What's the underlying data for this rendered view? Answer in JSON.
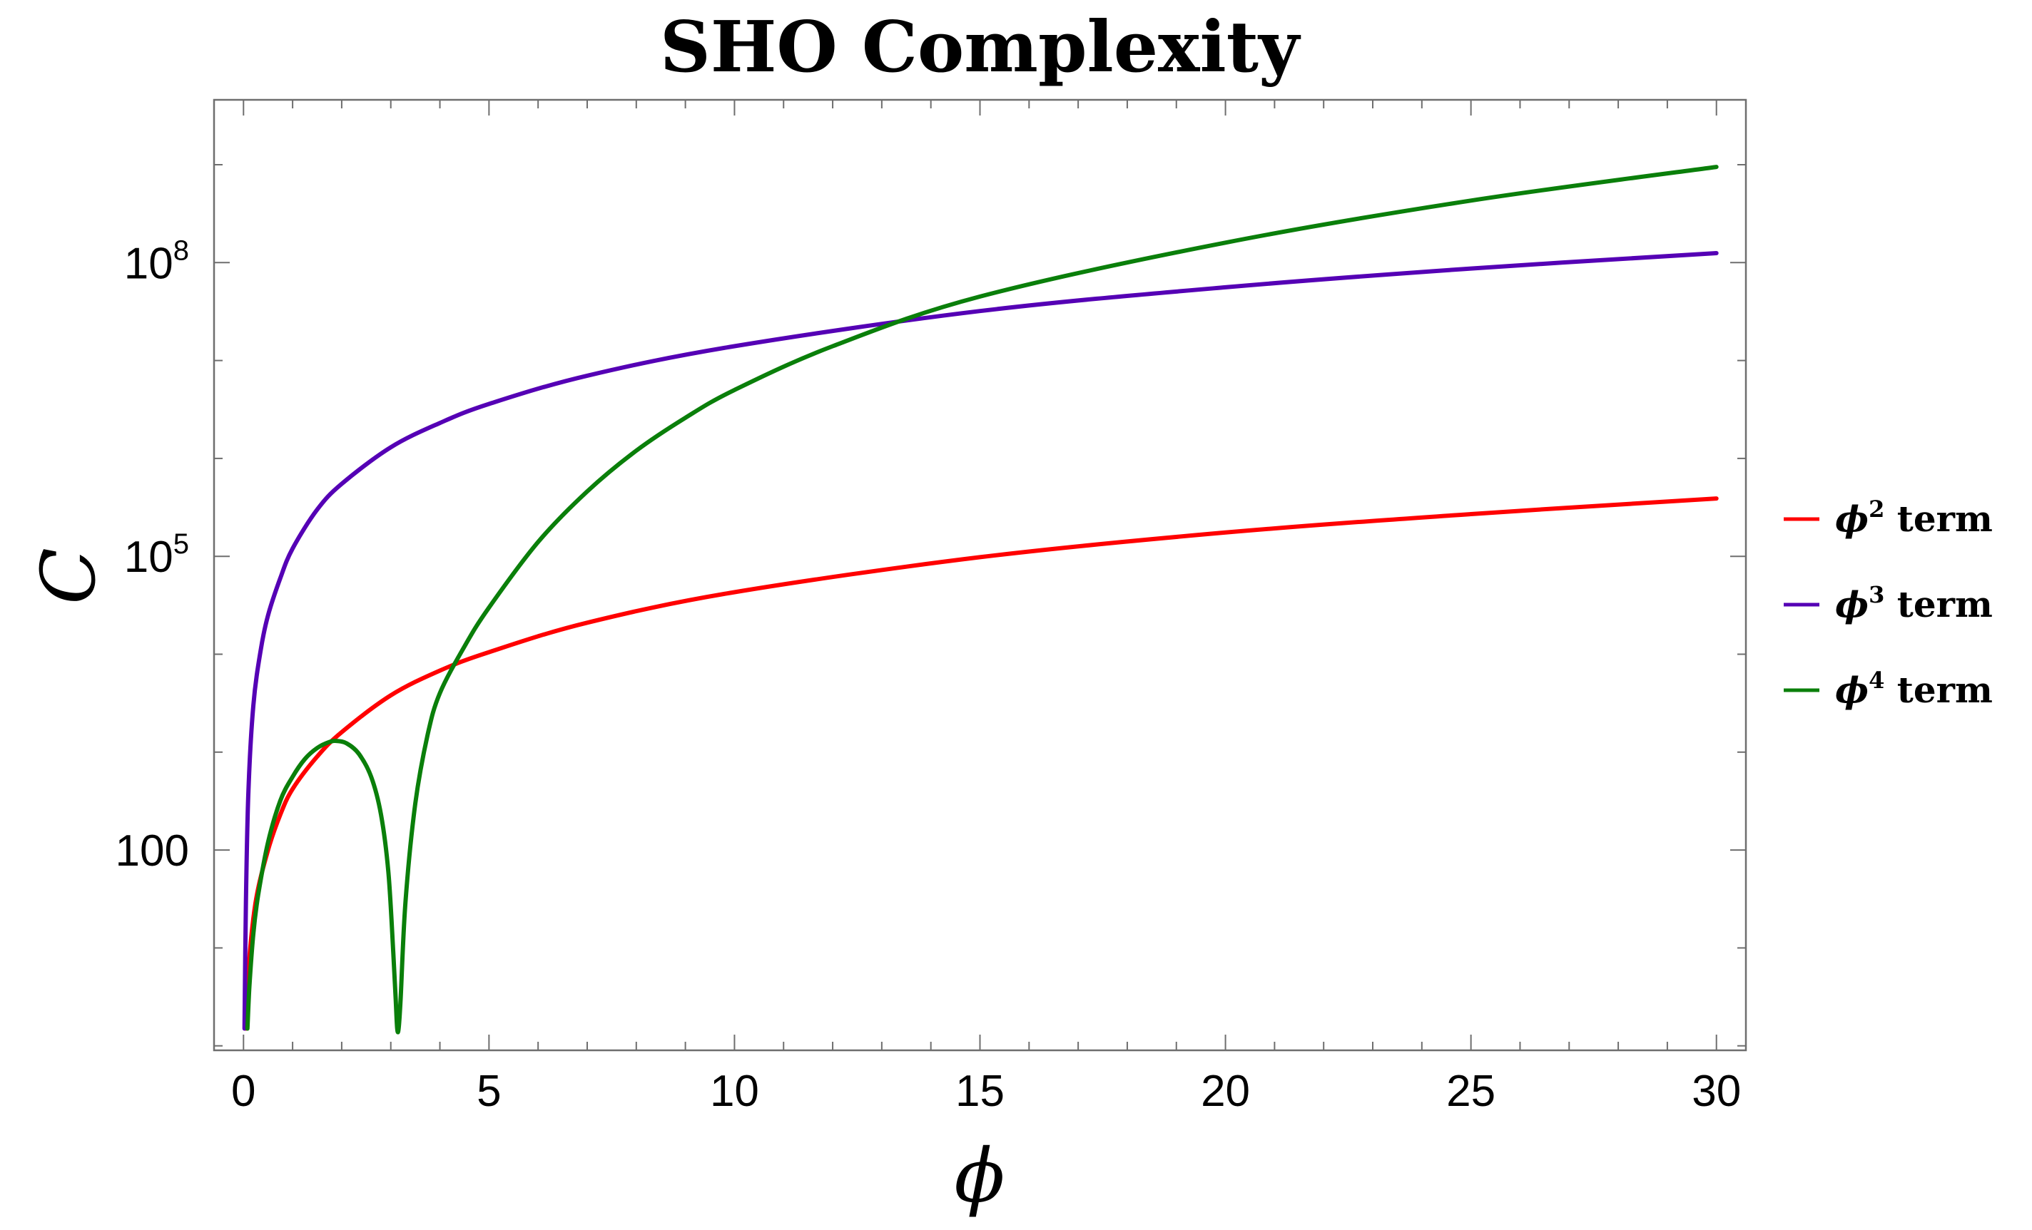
{
  "chart_data": {
    "type": "line",
    "title": "SHO Complexity",
    "xlabel": "ϕ",
    "ylabel": "C",
    "y_scale": "log",
    "xlim": [
      -0.6,
      30.6
    ],
    "ylim": [
      0.9,
      4600000000
    ],
    "xticks": [
      0,
      5,
      10,
      15,
      20,
      25,
      30
    ],
    "xtick_labels": [
      "0",
      "5",
      "10",
      "15",
      "20",
      "25",
      "30"
    ],
    "yticks": [
      100,
      100000,
      100000000
    ],
    "ytick_labels": [
      {
        "mantissa": "100",
        "exponent": ""
      },
      {
        "mantissa": "10",
        "exponent": "5"
      },
      {
        "mantissa": "10",
        "exponent": "8"
      }
    ],
    "grid": false,
    "legend_position": "right",
    "series": [
      {
        "name": "ϕ² term",
        "legend_base": "ϕ",
        "legend_power": "2",
        "legend_suffix": " term",
        "color": "#ff0000",
        "x": [
          0.05,
          0.1,
          0.25,
          0.5,
          0.75,
          1,
          1.5,
          2,
          3,
          4,
          5,
          7,
          10,
          15,
          20,
          25,
          30
        ],
        "y": [
          1.5,
          6,
          30,
          100,
          230,
          420,
          900,
          1600,
          3800,
          6800,
          10500,
          21000,
          43000,
          98000,
          175000,
          270000,
          390000
        ]
      },
      {
        "name": "ϕ³ term",
        "legend_base": "ϕ",
        "legend_power": "3",
        "legend_suffix": " term",
        "color": "#5500b5",
        "x": [
          0.02,
          0.05,
          0.1,
          0.2,
          0.35,
          0.5,
          0.75,
          1,
          1.5,
          2,
          3,
          4,
          5,
          7,
          10,
          15,
          20,
          25,
          30
        ],
        "y": [
          1.5,
          30,
          400,
          3000,
          11000,
          25000,
          60000,
          120000,
          300000,
          550000,
          1300000,
          2300000,
          3600000,
          7000000,
          14000000,
          32000000,
          56000000,
          87000000,
          125000000
        ]
      },
      {
        "name": "ϕ⁴ term",
        "legend_base": "ϕ",
        "legend_power": "4",
        "legend_suffix": " term",
        "color": "#0a7f0a",
        "x": [
          0.08,
          0.12,
          0.2,
          0.3,
          0.5,
          0.75,
          1,
          1.25,
          1.5,
          1.75,
          1.9,
          2.1,
          2.35,
          2.6,
          2.8,
          2.95,
          3.05,
          3.1,
          3.13,
          3.16,
          3.2,
          3.3,
          3.5,
          3.75,
          4,
          4.5,
          5,
          6,
          7,
          8,
          9,
          10,
          12,
          15,
          20,
          25,
          30
        ],
        "y": [
          1.5,
          4,
          14,
          35,
          120,
          320,
          560,
          850,
          1100,
          1270,
          1300,
          1230,
          960,
          560,
          230,
          60,
          9,
          3,
          1.5,
          1.5,
          3,
          30,
          300,
          1500,
          4000,
          12000,
          30000,
          140000,
          460000,
          1200000,
          2600000,
          5000000,
          14000000,
          45000000,
          160000000,
          430000000,
          950000000
        ]
      }
    ]
  }
}
